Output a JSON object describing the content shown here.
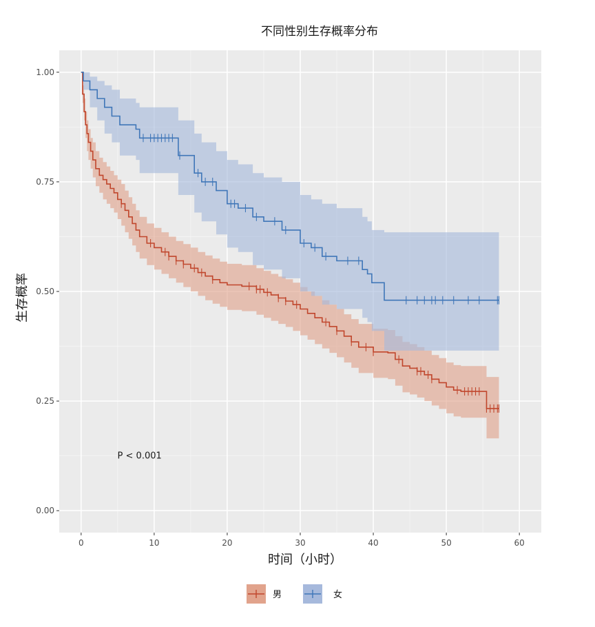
{
  "chart_data": {
    "type": "line",
    "subtype": "kaplan-meier-step",
    "title": "不同性别生存概率分布",
    "xlabel": "时间（小时）",
    "ylabel": "生存概率",
    "xlim": [
      -3,
      63
    ],
    "ylim": [
      -0.05,
      1.05
    ],
    "x_ticks": [
      0,
      10,
      20,
      30,
      40,
      50,
      60
    ],
    "x_tick_labels": [
      "0",
      "10",
      "20",
      "30",
      "40",
      "50",
      "60"
    ],
    "y_ticks": [
      0,
      0.25,
      0.5,
      0.75,
      1.0
    ],
    "y_tick_labels": [
      "0.00",
      "0.25",
      "0.50",
      "0.75",
      "1.00"
    ],
    "grid": true,
    "legend_position": "bottom",
    "annotation": {
      "text": "P < 0.001",
      "x": 8,
      "y": 0.125
    },
    "series": [
      {
        "name": "男",
        "color": "#c0462c",
        "band_color": "#e1a38c",
        "x": [
          0,
          0.2,
          0.4,
          0.6,
          0.8,
          1.0,
          1.3,
          1.6,
          2.0,
          2.5,
          3.0,
          3.5,
          4.0,
          4.5,
          5.0,
          5.5,
          6.0,
          6.5,
          7.0,
          7.5,
          8.0,
          9.0,
          10.0,
          11.0,
          12.0,
          13.0,
          14.0,
          15.0,
          16.0,
          17.0,
          18.0,
          19.0,
          20.0,
          22.0,
          24.0,
          25.0,
          26.0,
          27.0,
          28.0,
          29.0,
          30.0,
          31.0,
          32.0,
          33.0,
          34.0,
          35.0,
          36.0,
          37.0,
          38.0,
          40.0,
          42.0,
          43.0,
          44.0,
          45.0,
          46.0,
          47.0,
          48.0,
          49.0,
          50.0,
          51.0,
          52.0,
          54.0,
          55.0,
          55.5,
          57.2
        ],
        "y": [
          1.0,
          0.95,
          0.91,
          0.88,
          0.86,
          0.84,
          0.82,
          0.8,
          0.78,
          0.765,
          0.755,
          0.745,
          0.735,
          0.725,
          0.71,
          0.7,
          0.685,
          0.67,
          0.655,
          0.64,
          0.625,
          0.61,
          0.6,
          0.59,
          0.58,
          0.57,
          0.562,
          0.553,
          0.543,
          0.535,
          0.527,
          0.52,
          0.515,
          0.512,
          0.505,
          0.498,
          0.492,
          0.485,
          0.478,
          0.47,
          0.46,
          0.45,
          0.44,
          0.43,
          0.42,
          0.41,
          0.398,
          0.385,
          0.373,
          0.362,
          0.36,
          0.345,
          0.33,
          0.325,
          0.318,
          0.31,
          0.3,
          0.292,
          0.282,
          0.275,
          0.272,
          0.272,
          0.272,
          0.233,
          0.233
        ],
        "lower": [
          1.0,
          0.93,
          0.89,
          0.85,
          0.82,
          0.8,
          0.78,
          0.76,
          0.74,
          0.725,
          0.71,
          0.7,
          0.69,
          0.68,
          0.665,
          0.65,
          0.635,
          0.62,
          0.605,
          0.59,
          0.575,
          0.56,
          0.55,
          0.54,
          0.53,
          0.52,
          0.51,
          0.5,
          0.49,
          0.48,
          0.472,
          0.465,
          0.458,
          0.455,
          0.447,
          0.44,
          0.433,
          0.426,
          0.419,
          0.41,
          0.4,
          0.39,
          0.38,
          0.37,
          0.36,
          0.35,
          0.338,
          0.326,
          0.314,
          0.303,
          0.3,
          0.285,
          0.27,
          0.265,
          0.258,
          0.25,
          0.24,
          0.232,
          0.222,
          0.215,
          0.212,
          0.212,
          0.212,
          0.165,
          0.165
        ],
        "upper": [
          1.0,
          0.97,
          0.94,
          0.91,
          0.89,
          0.87,
          0.85,
          0.84,
          0.82,
          0.805,
          0.795,
          0.785,
          0.775,
          0.765,
          0.755,
          0.745,
          0.73,
          0.715,
          0.7,
          0.685,
          0.67,
          0.655,
          0.645,
          0.635,
          0.625,
          0.615,
          0.608,
          0.6,
          0.59,
          0.582,
          0.575,
          0.568,
          0.563,
          0.56,
          0.553,
          0.547,
          0.54,
          0.534,
          0.528,
          0.52,
          0.51,
          0.5,
          0.49,
          0.48,
          0.47,
          0.46,
          0.448,
          0.437,
          0.426,
          0.415,
          0.412,
          0.398,
          0.385,
          0.38,
          0.373,
          0.365,
          0.355,
          0.348,
          0.338,
          0.332,
          0.33,
          0.33,
          0.33,
          0.305,
          0.305
        ],
        "censor_x": [
          5.5,
          9.5,
          11.5,
          12,
          13,
          14,
          15.5,
          16.5,
          18,
          23,
          24,
          24.5,
          25.5,
          27,
          28,
          29.5,
          33.5,
          35,
          37,
          39,
          40,
          43.5,
          46,
          46.5,
          47.5,
          48,
          51.5,
          52.5,
          53,
          53.5,
          54,
          54.5,
          55.5,
          56,
          56.5,
          57,
          57.2
        ]
      },
      {
        "name": "女",
        "color": "#3f76b8",
        "band_color": "#a6b9dc",
        "x": [
          0,
          0.3,
          1.2,
          2.2,
          3.2,
          4.2,
          5.3,
          7.5,
          8.0,
          13.3,
          15.5,
          16.5,
          18.5,
          20.0,
          21.5,
          23.5,
          25.0,
          27.5,
          30.0,
          31.5,
          33.0,
          35.0,
          38.5,
          39.2,
          39.8,
          41.5,
          57.2
        ],
        "y": [
          1.0,
          0.98,
          0.96,
          0.94,
          0.92,
          0.9,
          0.88,
          0.87,
          0.85,
          0.81,
          0.77,
          0.75,
          0.73,
          0.7,
          0.69,
          0.67,
          0.66,
          0.64,
          0.61,
          0.6,
          0.58,
          0.57,
          0.55,
          0.54,
          0.52,
          0.48,
          0.48
        ],
        "lower": [
          1.0,
          0.96,
          0.92,
          0.89,
          0.86,
          0.84,
          0.81,
          0.8,
          0.77,
          0.72,
          0.68,
          0.66,
          0.63,
          0.6,
          0.59,
          0.56,
          0.55,
          0.53,
          0.5,
          0.49,
          0.47,
          0.46,
          0.44,
          0.43,
          0.41,
          0.365,
          0.365
        ],
        "upper": [
          1.0,
          1.0,
          0.99,
          0.98,
          0.97,
          0.96,
          0.94,
          0.93,
          0.92,
          0.89,
          0.86,
          0.84,
          0.82,
          0.8,
          0.79,
          0.77,
          0.76,
          0.75,
          0.72,
          0.71,
          0.7,
          0.69,
          0.67,
          0.66,
          0.64,
          0.635,
          0.635
        ],
        "censor_x": [
          8.5,
          9.5,
          10,
          10.5,
          11,
          11.5,
          12,
          12.5,
          13.5,
          16,
          17,
          18,
          20.5,
          21,
          22.5,
          24,
          26.5,
          28,
          30.5,
          32,
          33.5,
          36.5,
          38,
          44.5,
          46,
          47,
          48,
          48.5,
          49.5,
          51,
          53,
          54.5,
          57,
          57.2
        ]
      }
    ]
  }
}
